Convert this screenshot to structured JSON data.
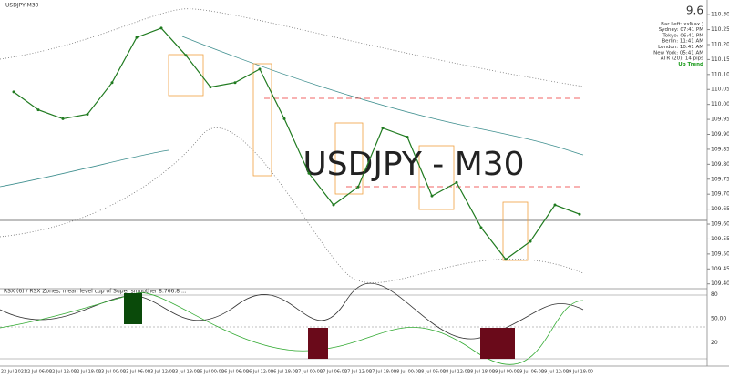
{
  "chart_data": {
    "type": "line",
    "title": "USDJPY,M30",
    "watermark": "USDJPY - M30",
    "categories": [
      "22 Jul 2021",
      "22 Jul 06:00",
      "22 Jul 12:00",
      "22 Jul 18:00",
      "23 Jul 00:00",
      "23 Jul 06:00",
      "23 Jul 12:00",
      "23 Jul 18:00",
      "26 Jul 00:00",
      "26 Jul 06:00",
      "26 Jul 12:00",
      "26 Jul 18:00",
      "27 Jul 00:00",
      "27 Jul 06:00",
      "27 Jul 12:00",
      "27 Jul 18:00",
      "28 Jul 00:00",
      "28 Jul 06:00",
      "28 Jul 12:00",
      "28 Jul 18:00",
      "29 Jul 00:00",
      "29 Jul 06:00",
      "29 Jul 12:00",
      "29 Jul 18:00"
    ],
    "series": [
      {
        "name": "USDJPY",
        "color": "#1f7a1f",
        "values": [
          110.042,
          109.982,
          109.952,
          109.967,
          110.073,
          110.224,
          110.255,
          110.164,
          110.058,
          110.073,
          110.118,
          109.952,
          109.77,
          109.664,
          109.724,
          109.921,
          109.891,
          109.694,
          109.739,
          109.588,
          109.482,
          109.542,
          109.664,
          109.633
        ]
      }
    ],
    "ylim": [
      109.39,
      110.34
    ],
    "yticks": [
      {
        "value": 110.3,
        "label": "110.300"
      },
      {
        "value": 110.25,
        "label": "110.250"
      },
      {
        "value": 110.2,
        "label": "110.200"
      },
      {
        "value": 110.15,
        "label": "110.150"
      },
      {
        "value": 110.1,
        "label": "110.100"
      },
      {
        "value": 110.05,
        "label": "110.050"
      },
      {
        "value": 110.0,
        "label": "110.000"
      },
      {
        "value": 109.95,
        "label": "109.950"
      },
      {
        "value": 109.9,
        "label": "109.900"
      },
      {
        "value": 109.85,
        "label": "109.850"
      },
      {
        "value": 109.8,
        "label": "109.800"
      },
      {
        "value": 109.75,
        "label": "109.750"
      },
      {
        "value": 109.7,
        "label": "109.700"
      },
      {
        "value": 109.65,
        "label": "109.650"
      },
      {
        "value": 109.6,
        "label": "109.600"
      },
      {
        "value": 109.55,
        "label": "109.550"
      },
      {
        "value": 109.5,
        "label": "109.500"
      },
      {
        "value": 109.45,
        "label": "109.450"
      },
      {
        "value": 109.4,
        "label": "109.400"
      }
    ],
    "grid": false,
    "info_panel": [
      "9.6",
      "Bar Left: xxMax )",
      "Sydney: 07:41 PM",
      "Tokyo: 06:41 PM",
      "Berlin: 11:41 AM",
      "London: 10:41 AM",
      "New York: 05:41 AM",
      "ATR (20): 14 pips",
      "Up Trend"
    ],
    "indicator": {
      "title": "RSX (6) / RSX Zones, mean level cup of Super smoother 8.766.8 ...",
      "levels": [
        {
          "value": 80,
          "label": "80"
        },
        {
          "value": 50,
          "label": "50.00"
        },
        {
          "value": 20,
          "label": "20"
        }
      ]
    }
  }
}
